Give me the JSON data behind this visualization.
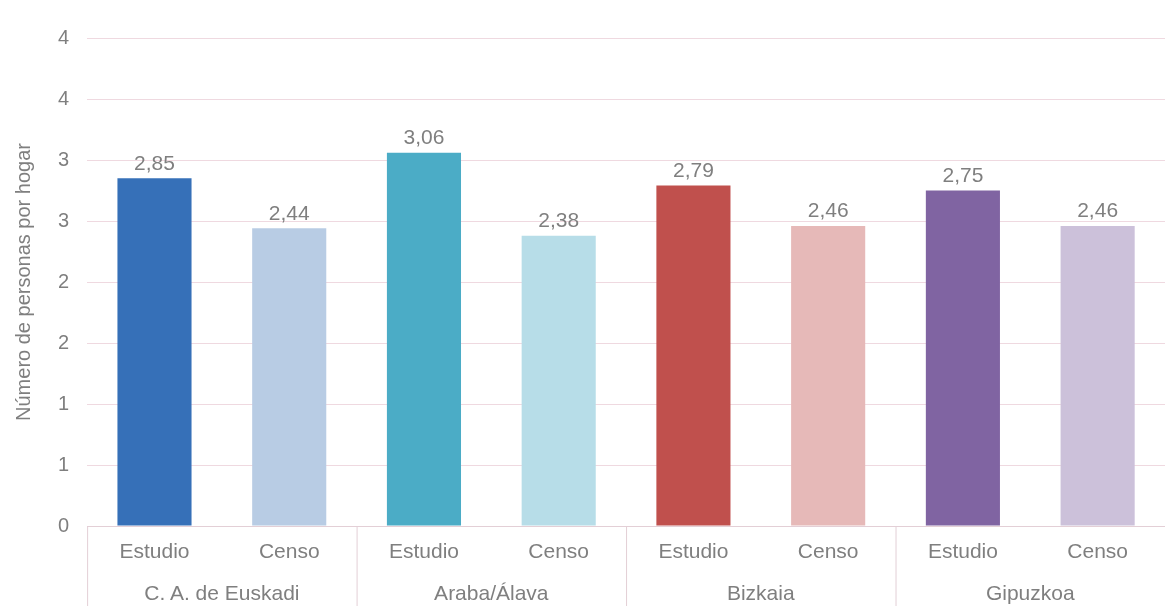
{
  "chart_data": {
    "type": "bar",
    "ylabel": "Número de personas por hogar",
    "categories": [
      "Estudio",
      "Censo",
      "Estudio",
      "Censo",
      "Estudio",
      "Censo",
      "Estudio",
      "Censo"
    ],
    "values": [
      2.85,
      2.44,
      3.06,
      2.38,
      2.79,
      2.46,
      2.75,
      2.46
    ],
    "colors": [
      "#3670b8",
      "#b8cce4",
      "#4bacc6",
      "#b7dde8",
      "#c0504d",
      "#e6b9b8",
      "#8064a2",
      "#ccc1da"
    ],
    "data_labels": true,
    "value_labels": [
      "2,85",
      "2,44",
      "3,06",
      "2,38",
      "2,79",
      "2,46",
      "2,75",
      "2,46"
    ],
    "annotations": [
      "C. A. de Euskadi",
      "Araba/Álava",
      "Bizkaia",
      "Gipuzkoa"
    ],
    "ylim": [
      0,
      4
    ],
    "yticks": [
      0,
      {
        "value": 0.5,
        "label": "1"
      },
      1,
      {
        "value": 1.5,
        "label": "2"
      },
      2,
      {
        "value": 2.5,
        "label": "3"
      },
      3,
      {
        "value": 3.5,
        "label": "4"
      },
      {
        "value": 4,
        "label": "4"
      }
    ],
    "grid": "y",
    "legend": false
  }
}
